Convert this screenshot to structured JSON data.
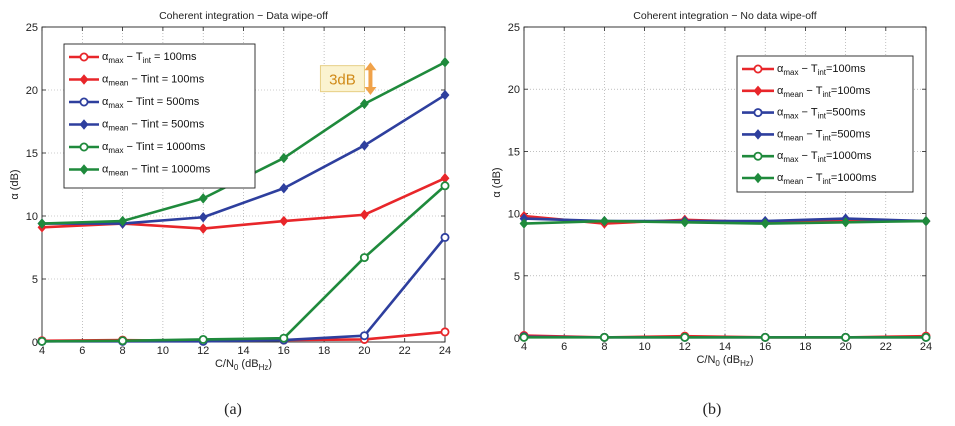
{
  "chart_data": [
    {
      "type": "line",
      "title": "Coherent integration − Data wipe-off",
      "xlabel": {
        "main": "C/N",
        "sub": "0",
        "mid": " (dB",
        "sub2": "Hz",
        "end": ")"
      },
      "ylabel": "α (dB)",
      "xlim": [
        4,
        24
      ],
      "ylim": [
        0,
        25
      ],
      "xticks": [
        4,
        6,
        8,
        10,
        12,
        14,
        16,
        18,
        20,
        22,
        24
      ],
      "yticks": [
        0,
        5,
        10,
        15,
        20,
        25
      ],
      "grid": true,
      "legend_placement": "top-left",
      "x": [
        4,
        8,
        12,
        16,
        20,
        24
      ],
      "caption": "(a)",
      "annotation": {
        "text": "3dB",
        "x": 20.3,
        "y_from": 19.6,
        "y_to": 22.2
      },
      "series": [
        {
          "name": {
            "pre": "α",
            "sub": "max",
            "mid": " − T",
            "sub2": "int",
            "post": " = 100ms"
          },
          "color": "#e8262a",
          "marker": "circle",
          "values": [
            0.1,
            0.15,
            0.1,
            0.15,
            0.2,
            0.8
          ]
        },
        {
          "name": {
            "pre": "α",
            "sub": "mean",
            "mid": " − Tint = 100ms",
            "sub2": "",
            "post": ""
          },
          "color": "#e8262a",
          "marker": "diamond",
          "values": [
            9.1,
            9.4,
            9.0,
            9.6,
            10.1,
            13.0
          ]
        },
        {
          "name": {
            "pre": "α",
            "sub": "max",
            "mid": " − Tint = 500ms",
            "sub2": "",
            "post": ""
          },
          "color": "#2e3f9e",
          "marker": "circle",
          "values": [
            0.05,
            0.05,
            0.05,
            0.15,
            0.5,
            8.3
          ]
        },
        {
          "name": {
            "pre": "α",
            "sub": "mean",
            "mid": " − Tint = 500ms",
            "sub2": "",
            "post": ""
          },
          "color": "#2e3f9e",
          "marker": "diamond",
          "values": [
            9.4,
            9.4,
            9.9,
            12.2,
            15.6,
            19.6
          ]
        },
        {
          "name": {
            "pre": "α",
            "sub": "max",
            "mid": " − Tint = 1000ms",
            "sub2": "",
            "post": ""
          },
          "color": "#1f8a3c",
          "marker": "circle",
          "values": [
            0.05,
            0.1,
            0.2,
            0.3,
            6.7,
            12.4
          ]
        },
        {
          "name": {
            "pre": "α",
            "sub": "mean",
            "mid": " − Tint = 1000ms",
            "sub2": "",
            "post": ""
          },
          "color": "#1f8a3c",
          "marker": "diamond",
          "values": [
            9.4,
            9.6,
            11.4,
            14.6,
            18.9,
            22.2
          ]
        }
      ]
    },
    {
      "type": "line",
      "title": "Coherent integration − No data wipe-off",
      "xlabel": {
        "main": "C/N",
        "sub": "0",
        "mid": " (dB",
        "sub2": "Hz",
        "end": ")"
      },
      "ylabel": "α (dB)",
      "xlim": [
        4,
        24
      ],
      "ylim": [
        0,
        25
      ],
      "xticks": [
        4,
        6,
        8,
        10,
        12,
        14,
        16,
        18,
        20,
        22,
        24
      ],
      "yticks": [
        0,
        5,
        10,
        15,
        20,
        25
      ],
      "grid": true,
      "legend_placement": "top-right",
      "x": [
        4,
        8,
        12,
        16,
        20,
        24
      ],
      "caption": "(b)",
      "series": [
        {
          "name": {
            "pre": "α",
            "sub": "max",
            "mid": " − T",
            "sub2": "int",
            "post": "=100ms"
          },
          "color": "#e8262a",
          "marker": "circle",
          "values": [
            0.2,
            0.05,
            0.15,
            0.05,
            0.05,
            0.15
          ]
        },
        {
          "name": {
            "pre": "α",
            "sub": "mean",
            "mid": " − T",
            "sub2": "int",
            "post": "=100ms"
          },
          "color": "#e8262a",
          "marker": "diamond",
          "values": [
            9.8,
            9.2,
            9.5,
            9.3,
            9.4,
            9.4
          ]
        },
        {
          "name": {
            "pre": "α",
            "sub": "max",
            "mid": " − T",
            "sub2": "int",
            "post": "=500ms"
          },
          "color": "#2e3f9e",
          "marker": "circle",
          "values": [
            0.1,
            0.05,
            0.05,
            0.05,
            0.05,
            0.05
          ]
        },
        {
          "name": {
            "pre": "α",
            "sub": "mean",
            "mid": " − T",
            "sub2": "int",
            "post": "=500ms"
          },
          "color": "#2e3f9e",
          "marker": "diamond",
          "values": [
            9.6,
            9.4,
            9.4,
            9.4,
            9.6,
            9.4
          ]
        },
        {
          "name": {
            "pre": "α",
            "sub": "max",
            "mid": " − T",
            "sub2": "int",
            "post": "=1000ms"
          },
          "color": "#1f8a3c",
          "marker": "circle",
          "values": [
            0.05,
            0.05,
            0.05,
            0.05,
            0.05,
            0.05
          ]
        },
        {
          "name": {
            "pre": "α",
            "sub": "mean",
            "mid": " − T",
            "sub2": "int",
            "post": "=1000ms"
          },
          "color": "#1f8a3c",
          "marker": "diamond",
          "values": [
            9.2,
            9.4,
            9.3,
            9.2,
            9.3,
            9.4
          ]
        }
      ]
    }
  ]
}
